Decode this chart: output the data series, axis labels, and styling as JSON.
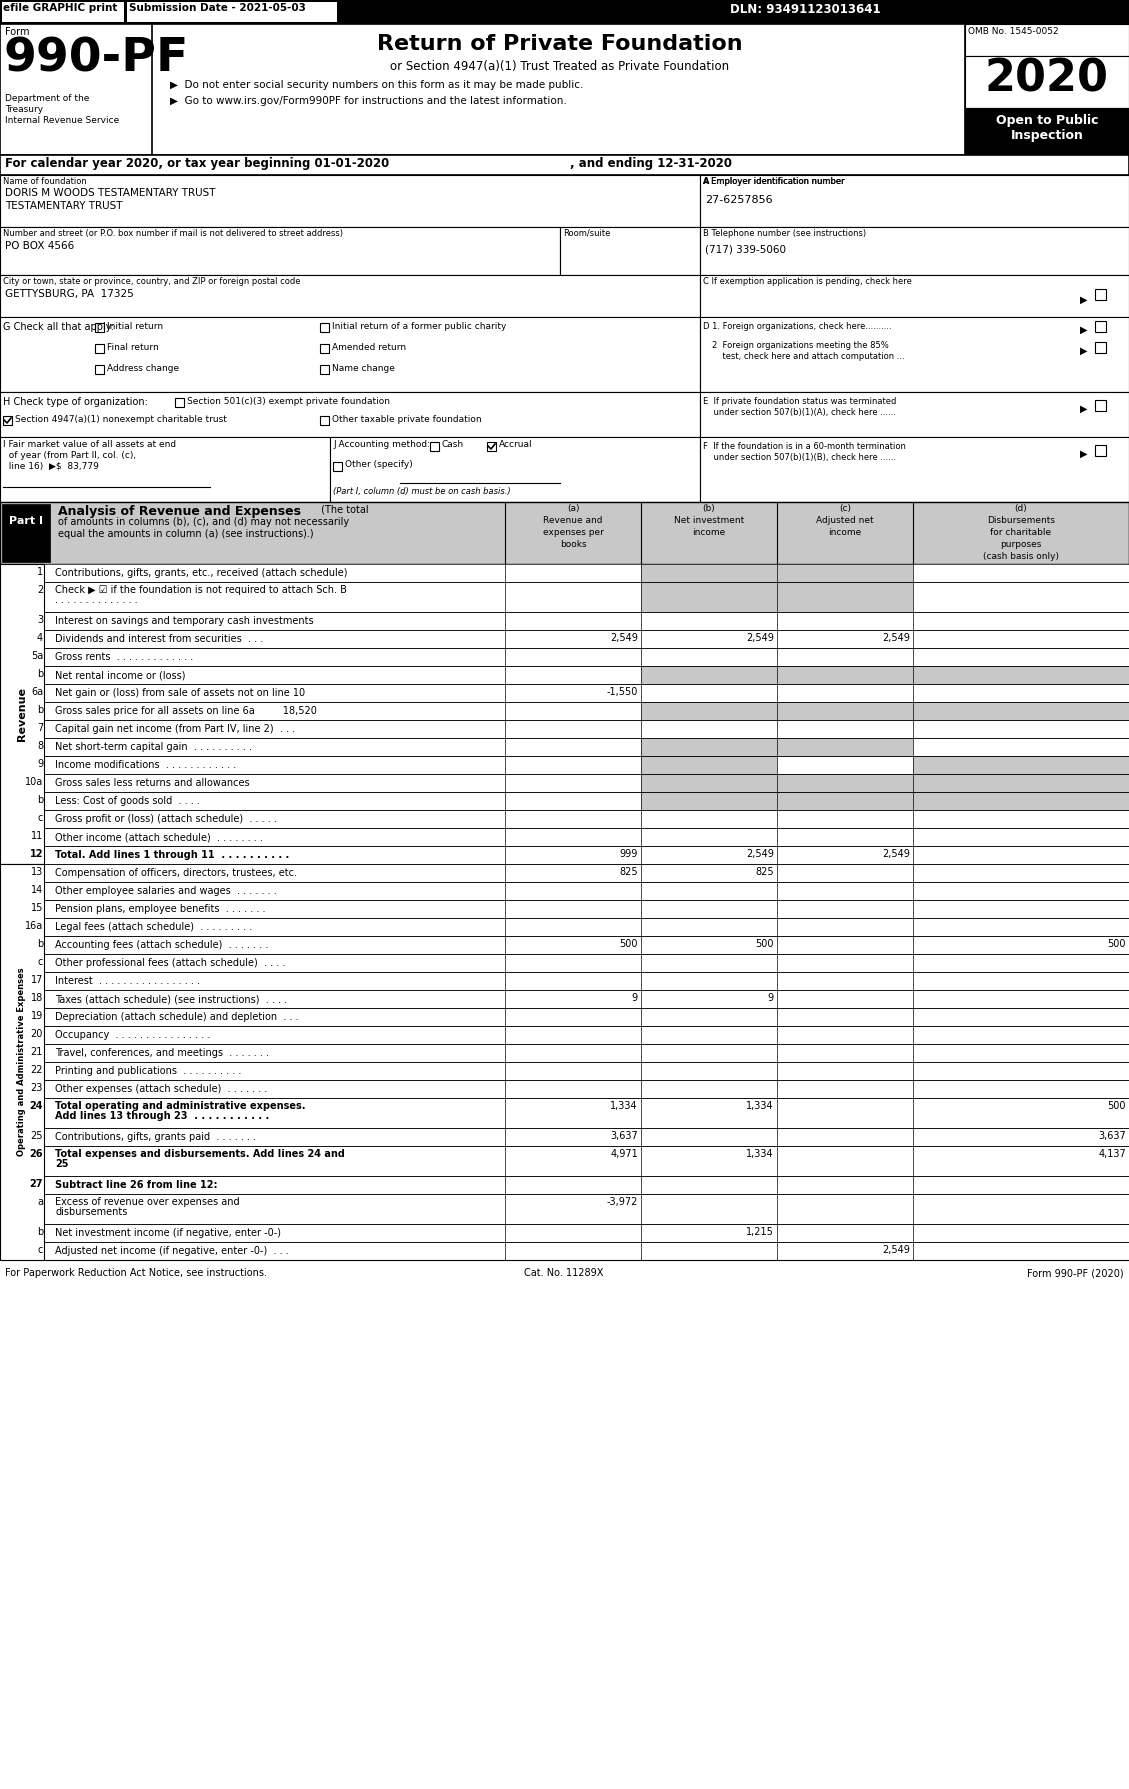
{
  "title_header": "efile GRAPHIC print",
  "submission_date": "Submission Date - 2021-05-03",
  "dln": "DLN: 93491123013641",
  "form_number": "990-PF",
  "form_label": "Form",
  "return_title": "Return of Private Foundation",
  "return_subtitle": "or Section 4947(a)(1) Trust Treated as Private Foundation",
  "bullet1": "▶  Do not enter social security numbers on this form as it may be made public.",
  "bullet2": "▶  Go to www.irs.gov/Form990PF for instructions and the latest information.",
  "omb": "OMB No. 1545-0052",
  "year": "2020",
  "open_text": "Open to Public\nInspection",
  "cal_year_line": "For calendar year 2020, or tax year beginning 01-01-2020",
  "cal_year_end": ", and ending 12-31-2020",
  "name_label": "Name of foundation",
  "name_val1": "DORIS M WOODS TESTAMENTARY TRUST",
  "name_val2": "TESTAMENTARY TRUST",
  "ein_label": "A Employer identification number",
  "ein_val": "27-6257856",
  "addr_label": "Number and street (or P.O. box number if mail is not delivered to street address)",
  "addr_val": "PO BOX 4566",
  "room_label": "Room/suite",
  "phone_label": "B Telephone number (see instructions)",
  "phone_val": "(717) 339-5060",
  "city_label": "City or town, state or province, country, and ZIP or foreign postal code",
  "city_val": "GETTYSBURG, PA  17325",
  "col_a": "(a)\nRevenue and\nexpenses per\nbooks",
  "col_b": "(b)\nNet investment\nincome",
  "col_c": "(c)\nAdjusted net\nincome",
  "col_d": "(d)\nDisbursements\nfor charitable\npurposes\n(cash basis only)",
  "rows": [
    {
      "num": "1",
      "desc": "Contributions, gifts, grants, etc., received (attach schedule)",
      "a": "",
      "b": "",
      "c": "",
      "d": "",
      "shade_b": true,
      "shade_c": true,
      "shade_d": false,
      "bold_desc": false,
      "double_h": false
    },
    {
      "num": "2",
      "desc": "Check ▶ ☑ if the foundation is not required to attach Sch. B\n. . . . . . . . . . . . . .",
      "a": "",
      "b": "",
      "c": "",
      "d": "",
      "shade_b": true,
      "shade_c": true,
      "shade_d": false,
      "bold_desc": false,
      "double_h": true
    },
    {
      "num": "3",
      "desc": "Interest on savings and temporary cash investments",
      "a": "",
      "b": "",
      "c": "",
      "d": "",
      "shade_b": false,
      "shade_c": false,
      "shade_d": false,
      "bold_desc": false,
      "double_h": false
    },
    {
      "num": "4",
      "desc": "Dividends and interest from securities  . . .",
      "a": "2,549",
      "b": "2,549",
      "c": "2,549",
      "d": "",
      "shade_b": false,
      "shade_c": false,
      "shade_d": false,
      "bold_desc": false,
      "double_h": false
    },
    {
      "num": "5a",
      "desc": "Gross rents  . . . . . . . . . . . . .",
      "a": "",
      "b": "",
      "c": "",
      "d": "",
      "shade_b": false,
      "shade_c": false,
      "shade_d": false,
      "bold_desc": false,
      "double_h": false
    },
    {
      "num": "b",
      "desc": "Net rental income or (loss)",
      "a": "",
      "b": "",
      "c": "",
      "d": "",
      "shade_b": true,
      "shade_c": true,
      "shade_d": true,
      "bold_desc": false,
      "double_h": false
    },
    {
      "num": "6a",
      "desc": "Net gain or (loss) from sale of assets not on line 10",
      "a": "-1,550",
      "b": "",
      "c": "",
      "d": "",
      "shade_b": false,
      "shade_c": false,
      "shade_d": false,
      "bold_desc": false,
      "double_h": false
    },
    {
      "num": "b",
      "desc": "Gross sales price for all assets on line 6a         18,520",
      "a": "",
      "b": "",
      "c": "",
      "d": "",
      "shade_b": true,
      "shade_c": true,
      "shade_d": true,
      "bold_desc": false,
      "double_h": false
    },
    {
      "num": "7",
      "desc": "Capital gain net income (from Part IV, line 2)  . . .",
      "a": "",
      "b": "",
      "c": "",
      "d": "",
      "shade_b": false,
      "shade_c": false,
      "shade_d": false,
      "bold_desc": false,
      "double_h": false
    },
    {
      "num": "8",
      "desc": "Net short-term capital gain  . . . . . . . . . .",
      "a": "",
      "b": "",
      "c": "",
      "d": "",
      "shade_b": true,
      "shade_c": true,
      "shade_d": false,
      "bold_desc": false,
      "double_h": false
    },
    {
      "num": "9",
      "desc": "Income modifications  . . . . . . . . . . . .",
      "a": "",
      "b": "",
      "c": "",
      "d": "",
      "shade_b": true,
      "shade_c": false,
      "shade_d": true,
      "bold_desc": false,
      "double_h": false
    },
    {
      "num": "10a",
      "desc": "Gross sales less returns and allowances",
      "a": "",
      "b": "",
      "c": "",
      "d": "",
      "shade_b": true,
      "shade_c": true,
      "shade_d": true,
      "bold_desc": false,
      "double_h": false
    },
    {
      "num": "b",
      "desc": "Less: Cost of goods sold  . . . .",
      "a": "",
      "b": "",
      "c": "",
      "d": "",
      "shade_b": true,
      "shade_c": true,
      "shade_d": true,
      "bold_desc": false,
      "double_h": false
    },
    {
      "num": "c",
      "desc": "Gross profit or (loss) (attach schedule)  . . . . .",
      "a": "",
      "b": "",
      "c": "",
      "d": "",
      "shade_b": false,
      "shade_c": false,
      "shade_d": false,
      "bold_desc": false,
      "double_h": false
    },
    {
      "num": "11",
      "desc": "Other income (attach schedule)  . . . . . . . .",
      "a": "",
      "b": "",
      "c": "",
      "d": "",
      "shade_b": false,
      "shade_c": false,
      "shade_d": false,
      "bold_desc": false,
      "double_h": false
    },
    {
      "num": "12",
      "desc": "Total. Add lines 1 through 11  . . . . . . . . . .",
      "a": "999",
      "b": "2,549",
      "c": "2,549",
      "d": "",
      "shade_b": false,
      "shade_c": false,
      "shade_d": false,
      "bold_desc": true,
      "double_h": false
    },
    {
      "num": "13",
      "desc": "Compensation of officers, directors, trustees, etc.",
      "a": "825",
      "b": "825",
      "c": "",
      "d": "",
      "shade_b": false,
      "shade_c": false,
      "shade_d": false,
      "bold_desc": false,
      "double_h": false
    },
    {
      "num": "14",
      "desc": "Other employee salaries and wages  . . . . . . .",
      "a": "",
      "b": "",
      "c": "",
      "d": "",
      "shade_b": false,
      "shade_c": false,
      "shade_d": false,
      "bold_desc": false,
      "double_h": false
    },
    {
      "num": "15",
      "desc": "Pension plans, employee benefits  . . . . . . .",
      "a": "",
      "b": "",
      "c": "",
      "d": "",
      "shade_b": false,
      "shade_c": false,
      "shade_d": false,
      "bold_desc": false,
      "double_h": false
    },
    {
      "num": "16a",
      "desc": "Legal fees (attach schedule)  . . . . . . . . .",
      "a": "",
      "b": "",
      "c": "",
      "d": "",
      "shade_b": false,
      "shade_c": false,
      "shade_d": false,
      "bold_desc": false,
      "double_h": false
    },
    {
      "num": "b",
      "desc": "Accounting fees (attach schedule)  . . . . . . .",
      "a": "500",
      "b": "500",
      "c": "",
      "d": "500",
      "shade_b": false,
      "shade_c": false,
      "shade_d": false,
      "bold_desc": false,
      "double_h": false
    },
    {
      "num": "c",
      "desc": "Other professional fees (attach schedule)  . . . .",
      "a": "",
      "b": "",
      "c": "",
      "d": "",
      "shade_b": false,
      "shade_c": false,
      "shade_d": false,
      "bold_desc": false,
      "double_h": false
    },
    {
      "num": "17",
      "desc": "Interest  . . . . . . . . . . . . . . . . .",
      "a": "",
      "b": "",
      "c": "",
      "d": "",
      "shade_b": false,
      "shade_c": false,
      "shade_d": false,
      "bold_desc": false,
      "double_h": false
    },
    {
      "num": "18",
      "desc": "Taxes (attach schedule) (see instructions)  . . . .",
      "a": "9",
      "b": "9",
      "c": "",
      "d": "",
      "shade_b": false,
      "shade_c": false,
      "shade_d": false,
      "bold_desc": false,
      "double_h": false
    },
    {
      "num": "19",
      "desc": "Depreciation (attach schedule) and depletion  . . .",
      "a": "",
      "b": "",
      "c": "",
      "d": "",
      "shade_b": false,
      "shade_c": false,
      "shade_d": false,
      "bold_desc": false,
      "double_h": false
    },
    {
      "num": "20",
      "desc": "Occupancy  . . . . . . . . . . . . . . . .",
      "a": "",
      "b": "",
      "c": "",
      "d": "",
      "shade_b": false,
      "shade_c": false,
      "shade_d": false,
      "bold_desc": false,
      "double_h": false
    },
    {
      "num": "21",
      "desc": "Travel, conferences, and meetings  . . . . . . .",
      "a": "",
      "b": "",
      "c": "",
      "d": "",
      "shade_b": false,
      "shade_c": false,
      "shade_d": false,
      "bold_desc": false,
      "double_h": false
    },
    {
      "num": "22",
      "desc": "Printing and publications  . . . . . . . . . .",
      "a": "",
      "b": "",
      "c": "",
      "d": "",
      "shade_b": false,
      "shade_c": false,
      "shade_d": false,
      "bold_desc": false,
      "double_h": false
    },
    {
      "num": "23",
      "desc": "Other expenses (attach schedule)  . . . . . . .",
      "a": "",
      "b": "",
      "c": "",
      "d": "",
      "shade_b": false,
      "shade_c": false,
      "shade_d": false,
      "bold_desc": false,
      "double_h": false
    },
    {
      "num": "24",
      "desc": "Total operating and administrative expenses.\nAdd lines 13 through 23  . . . . . . . . . . .",
      "a": "1,334",
      "b": "1,334",
      "c": "",
      "d": "500",
      "shade_b": false,
      "shade_c": false,
      "shade_d": false,
      "bold_desc": true,
      "double_h": true
    },
    {
      "num": "25",
      "desc": "Contributions, gifts, grants paid  . . . . . . .",
      "a": "3,637",
      "b": "",
      "c": "",
      "d": "3,637",
      "shade_b": false,
      "shade_c": false,
      "shade_d": false,
      "bold_desc": false,
      "double_h": false
    },
    {
      "num": "26",
      "desc": "Total expenses and disbursements. Add lines 24 and\n25",
      "a": "4,971",
      "b": "1,334",
      "c": "",
      "d": "4,137",
      "shade_b": false,
      "shade_c": false,
      "shade_d": false,
      "bold_desc": true,
      "double_h": true
    },
    {
      "num": "27",
      "desc": "Subtract line 26 from line 12:",
      "a": "",
      "b": "",
      "c": "",
      "d": "",
      "shade_b": false,
      "shade_c": false,
      "shade_d": false,
      "bold_desc": true,
      "double_h": false,
      "header_row": true
    },
    {
      "num": "a",
      "desc": "Excess of revenue over expenses and\ndisbursements",
      "a": "-3,972",
      "b": "",
      "c": "",
      "d": "",
      "shade_b": false,
      "shade_c": false,
      "shade_d": false,
      "bold_desc": false,
      "double_h": true
    },
    {
      "num": "b",
      "desc": "Net investment income (if negative, enter -0-)",
      "a": "",
      "b": "1,215",
      "c": "",
      "d": "",
      "shade_b": false,
      "shade_c": false,
      "shade_d": false,
      "bold_desc": false,
      "double_h": false
    },
    {
      "num": "c",
      "desc": "Adjusted net income (if negative, enter -0-)  . . .",
      "a": "",
      "b": "",
      "c": "2,549",
      "d": "",
      "shade_b": false,
      "shade_c": false,
      "shade_d": false,
      "bold_desc": false,
      "double_h": false
    }
  ],
  "footer": "For Paperwork Reduction Act Notice, see instructions.",
  "cat_no": "Cat. No. 11289X",
  "form_footer": "Form 990-PF (2020)",
  "shade_color": "#c8c8c8",
  "header_shade": "#c8c8c8"
}
